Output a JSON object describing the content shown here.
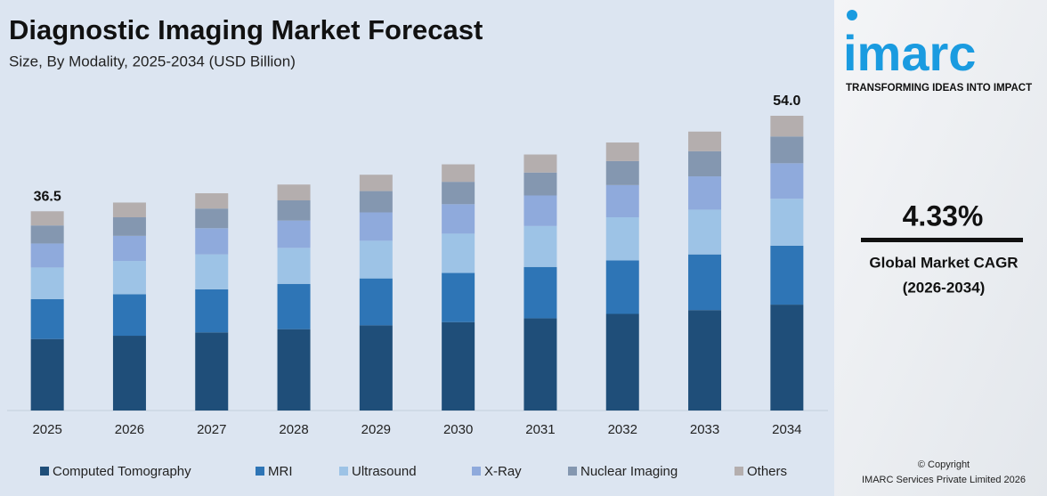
{
  "chart_data": {
    "type": "stacked-bar",
    "title": "Diagnostic Imaging Market Forecast",
    "subtitle": "Size, By Modality, 2025-2034 (USD Billion)",
    "categories": [
      "2025",
      "2026",
      "2027",
      "2028",
      "2029",
      "2030",
      "2031",
      "2032",
      "2033",
      "2034"
    ],
    "series": [
      {
        "name": "Computed Tomography",
        "color": "#1f4e79",
        "values": [
          13.1,
          13.7,
          14.3,
          14.9,
          15.6,
          16.2,
          16.9,
          17.7,
          18.4,
          19.4
        ]
      },
      {
        "name": "MRI",
        "color": "#2e75b6",
        "values": [
          7.3,
          7.6,
          7.9,
          8.3,
          8.6,
          9.0,
          9.4,
          9.8,
          10.2,
          10.8
        ]
      },
      {
        "name": "Ultrasound",
        "color": "#9dc3e6",
        "values": [
          5.8,
          6.1,
          6.4,
          6.6,
          6.9,
          7.2,
          7.5,
          7.9,
          8.2,
          8.6
        ]
      },
      {
        "name": "X-Ray",
        "color": "#8faadc",
        "values": [
          4.4,
          4.6,
          4.8,
          5.0,
          5.2,
          5.4,
          5.6,
          5.9,
          6.1,
          6.5
        ]
      },
      {
        "name": "Nuclear Imaging",
        "color": "#8497b0",
        "values": [
          3.3,
          3.4,
          3.6,
          3.7,
          3.9,
          4.1,
          4.2,
          4.4,
          4.6,
          4.9
        ]
      },
      {
        "name": "Others",
        "color": "#b4aeae",
        "values": [
          2.6,
          2.7,
          2.8,
          2.9,
          3.0,
          3.2,
          3.3,
          3.4,
          3.6,
          3.8
        ]
      }
    ],
    "totals": [
      36.5,
      null,
      null,
      null,
      null,
      null,
      null,
      null,
      null,
      54.0
    ],
    "total_labels": [
      "36.5",
      null,
      null,
      null,
      null,
      null,
      null,
      null,
      null,
      "54.0"
    ]
  },
  "sidebar": {
    "logo": "imarc",
    "tagline": "TRANSFORMING IDEAS INTO IMPACT",
    "cagr": "4.33%",
    "cagr_label": "Global Market CAGR",
    "cagr_period": "(2026-2034)",
    "copyright": "© Copyright",
    "company": "IMARC Services Private Limited 2026"
  }
}
